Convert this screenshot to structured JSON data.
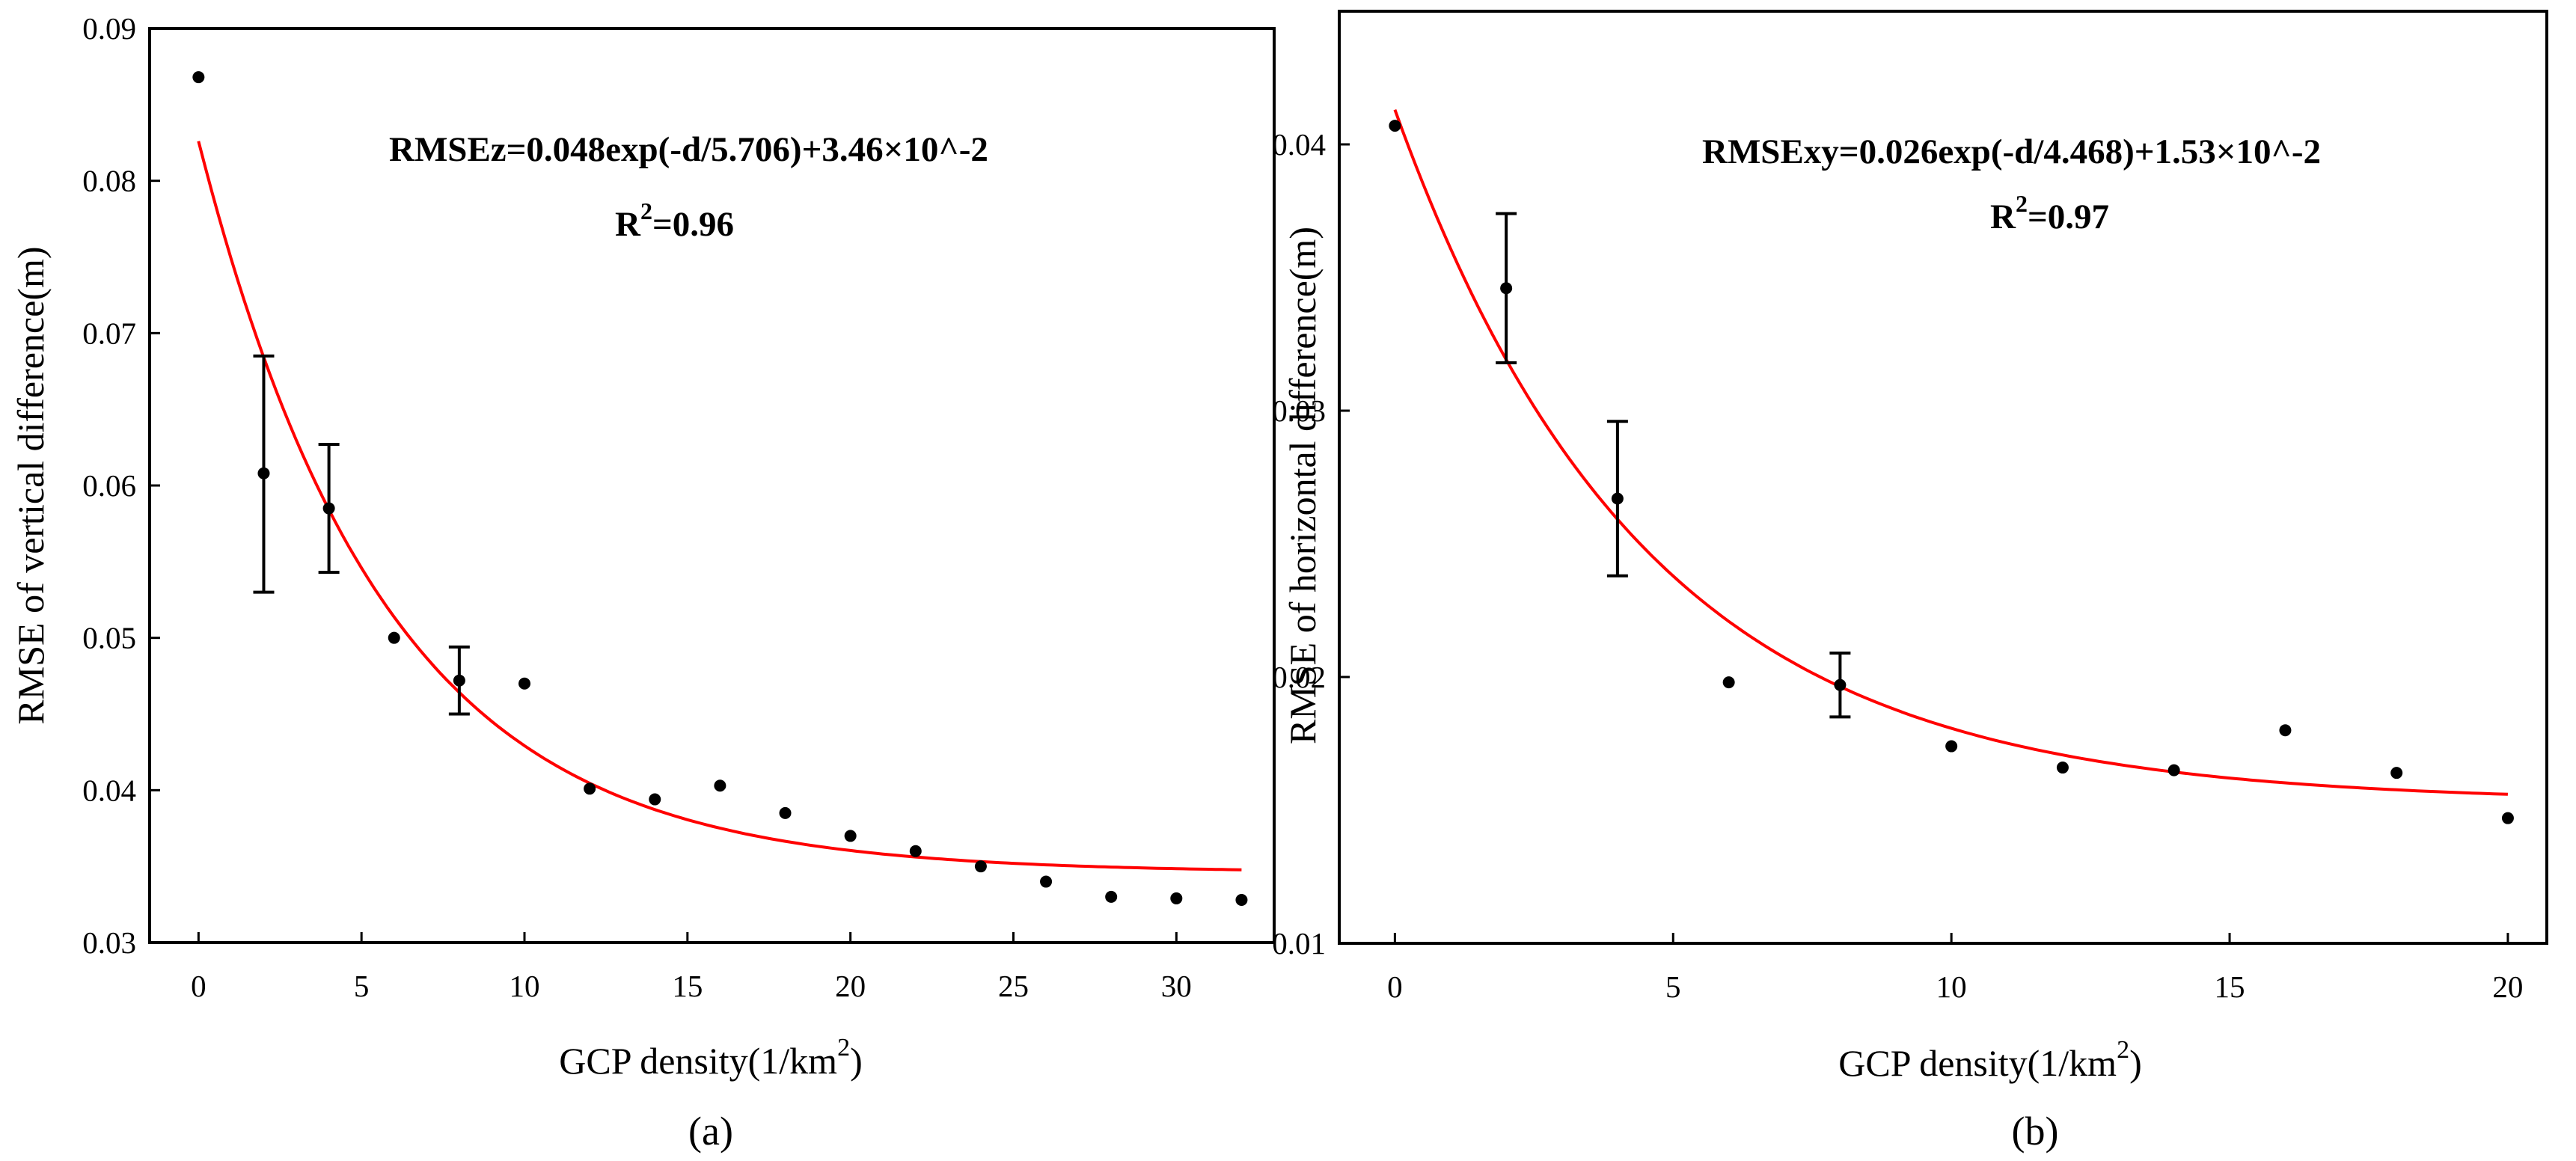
{
  "chart_data": [
    {
      "type": "scatter",
      "panel_label": "(a)",
      "xlabel": "GCP density(1/km",
      "xlabel_sup": "2",
      "xlabel_end": ")",
      "ylabel": "RMSE of vertical difference(m)",
      "xlim": [
        -1.5,
        33
      ],
      "ylim": [
        0.03,
        0.09
      ],
      "xticks": [
        0,
        5,
        10,
        15,
        20,
        25,
        30
      ],
      "xtick_labels": [
        "0",
        "5",
        "10",
        "15",
        "20",
        "25",
        "30"
      ],
      "yticks": [
        0.03,
        0.04,
        0.05,
        0.06,
        0.07,
        0.08,
        0.09
      ],
      "ytick_labels": [
        "0.03",
        "0.04",
        "0.05",
        "0.06",
        "0.07",
        "0.08",
        "0.09"
      ],
      "points": {
        "x": [
          0,
          2,
          4,
          6,
          8,
          10,
          12,
          14,
          16,
          18,
          20,
          22,
          24,
          26,
          28,
          30,
          32
        ],
        "y": [
          0.0868,
          0.0608,
          0.0585,
          0.05,
          0.0472,
          0.047,
          0.0401,
          0.0394,
          0.0403,
          0.0385,
          0.037,
          0.036,
          0.035,
          0.034,
          0.033,
          0.0329,
          0.0328
        ]
      },
      "error_bars": [
        {
          "x": 2,
          "low": 0.053,
          "high": 0.0685
        },
        {
          "x": 4,
          "low": 0.0543,
          "high": 0.0627
        },
        {
          "x": 8,
          "low": 0.045,
          "high": 0.0494
        }
      ],
      "fit": {
        "a": 0.048,
        "t": 5.706,
        "c": 0.0346,
        "x_range": [
          0,
          32
        ],
        "color": "#ff0000"
      },
      "equation": "RMSEz=0.048exp(-d/5.706)+3.46×10^-2",
      "r2_prefix": "R",
      "r2_sup": "2",
      "r2_value": "=0.96"
    },
    {
      "type": "scatter",
      "panel_label": "(b)",
      "xlabel": "GCP density(1/km",
      "xlabel_sup": "2",
      "xlabel_end": ")",
      "ylabel": "RMSE of horizontal difference(m)",
      "xlim": [
        -1,
        20.7
      ],
      "ylim": [
        0.01,
        0.045
      ],
      "xticks": [
        0,
        5,
        10,
        15,
        20
      ],
      "xtick_labels": [
        "0",
        "5",
        "10",
        "15",
        "20"
      ],
      "yticks": [
        0.01,
        0.02,
        0.03,
        0.04
      ],
      "ytick_labels": [
        "0.01",
        "0.02",
        "0.03",
        "0.04"
      ],
      "points": {
        "x": [
          0,
          2,
          4,
          6,
          8,
          10,
          12,
          14,
          16,
          18,
          20
        ],
        "y": [
          0.0407,
          0.0346,
          0.0267,
          0.0198,
          0.0197,
          0.0174,
          0.0166,
          0.0165,
          0.018,
          0.0164,
          0.0147
        ]
      },
      "error_bars": [
        {
          "x": 2,
          "low": 0.0318,
          "high": 0.0374
        },
        {
          "x": 4,
          "low": 0.0238,
          "high": 0.0296
        },
        {
          "x": 8,
          "low": 0.0185,
          "high": 0.0209
        }
      ],
      "fit": {
        "a": 0.026,
        "t": 4.468,
        "c": 0.0153,
        "x_range": [
          0,
          20
        ],
        "color": "#ff0000"
      },
      "equation": "RMSExy=0.026exp(-d/4.468)+1.53×10^-2",
      "r2_prefix": "R",
      "r2_sup": "2",
      "r2_value": "=0.97"
    }
  ]
}
